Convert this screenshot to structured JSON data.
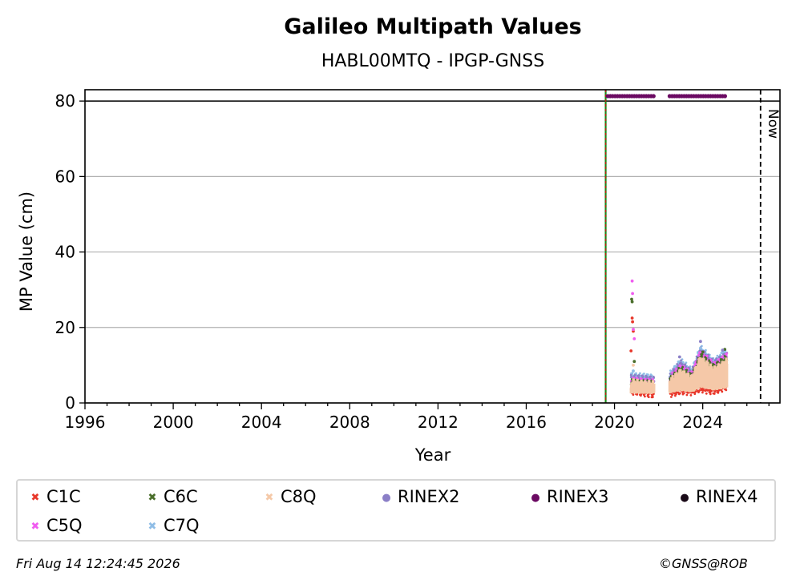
{
  "chart_data": {
    "type": "scatter",
    "title": "Galileo Multipath Values",
    "subtitle": "HABL00MTQ - IPGP-GNSS",
    "xlabel": "Year",
    "ylabel": "MP Value (cm)",
    "xlim": [
      1996,
      2027.5
    ],
    "ylim": [
      0,
      83
    ],
    "xticks": [
      1996,
      2000,
      2004,
      2008,
      2012,
      2016,
      2020,
      2024
    ],
    "yticks": [
      0,
      20,
      40,
      60,
      80
    ],
    "grid": "y",
    "reference_lines": {
      "horizontal": 80,
      "vertical_green": 2019.6,
      "now": 2026.62,
      "now_label": "Now"
    },
    "archive_markers": {
      "y": 81.3,
      "segments": [
        [
          2019.7,
          2021.8
        ],
        [
          2022.5,
          2025.1
        ]
      ]
    },
    "series": [
      {
        "name": "C1C",
        "color": "#e8382b",
        "marker": "x",
        "points": [
          [
            2020.75,
            13.8
          ],
          [
            2020.8,
            22.5
          ],
          [
            2020.82,
            21.5
          ],
          [
            2020.85,
            19
          ]
        ],
        "profile": [
          [
            2020.75,
            3.6
          ],
          [
            2021.8,
            2.6
          ],
          [
            2022.5,
            2.8
          ],
          [
            2023.0,
            3.6
          ],
          [
            2023.5,
            3.4
          ],
          [
            2023.9,
            4.2
          ],
          [
            2024.5,
            3.5
          ],
          [
            2025.1,
            4.8
          ]
        ]
      },
      {
        "name": "C5Q",
        "color": "#f05cf0",
        "marker": "x",
        "points": [
          [
            2020.8,
            32.3
          ],
          [
            2020.82,
            29
          ],
          [
            2020.85,
            19.5
          ],
          [
            2020.9,
            17
          ]
        ],
        "profile": [
          [
            2020.75,
            5.5
          ],
          [
            2021.8,
            5.0
          ],
          [
            2022.5,
            6.0
          ],
          [
            2023.0,
            9.0
          ],
          [
            2023.5,
            7.0
          ],
          [
            2023.9,
            13.0
          ],
          [
            2024.5,
            9.5
          ],
          [
            2025.1,
            12.0
          ]
        ]
      },
      {
        "name": "C6C",
        "color": "#4a6e2b",
        "marker": "x",
        "points": [
          [
            2020.78,
            27.5
          ],
          [
            2020.8,
            26.8
          ],
          [
            2020.9,
            11
          ],
          [
            2024.0,
            13.5
          ],
          [
            2025.0,
            14.2
          ]
        ],
        "profile": [
          [
            2020.75,
            5.0
          ],
          [
            2021.8,
            4.5
          ],
          [
            2022.5,
            5.5
          ],
          [
            2023.0,
            8.5
          ],
          [
            2023.5,
            6.5
          ],
          [
            2023.9,
            12.0
          ],
          [
            2024.5,
            9.0
          ],
          [
            2025.1,
            11.5
          ]
        ]
      },
      {
        "name": "C7Q",
        "color": "#8fbde6",
        "marker": "x",
        "points": [
          [
            2020.85,
            8.5
          ],
          [
            2023.9,
            14.5
          ],
          [
            2024.9,
            13.5
          ]
        ],
        "profile": [
          [
            2020.75,
            6.8
          ],
          [
            2021.8,
            6.2
          ],
          [
            2022.5,
            7.0
          ],
          [
            2023.0,
            10.5
          ],
          [
            2023.5,
            8.0
          ],
          [
            2023.9,
            14.0
          ],
          [
            2024.5,
            10.5
          ],
          [
            2025.1,
            13.0
          ]
        ]
      },
      {
        "name": "C8Q",
        "color": "#f5c9a8",
        "marker": "x",
        "points": [
          [
            2020.85,
            10
          ]
        ],
        "profile": [
          [
            2020.75,
            5.2
          ],
          [
            2021.8,
            4.6
          ],
          [
            2022.5,
            5.4
          ],
          [
            2023.0,
            8.0
          ],
          [
            2023.5,
            6.2
          ],
          [
            2023.9,
            11.5
          ],
          [
            2024.5,
            8.4
          ],
          [
            2025.1,
            10.8
          ]
        ]
      },
      {
        "name": "RINEX2",
        "color": "#8b7fc7",
        "marker": "dot",
        "points": [
          [
            2022.95,
            12.2
          ],
          [
            2023.9,
            16.3
          ],
          [
            2024.9,
            14.0
          ]
        ],
        "profile": [
          [
            2020.75,
            6.2
          ],
          [
            2021.8,
            5.8
          ],
          [
            2022.5,
            6.6
          ],
          [
            2023.0,
            10.0
          ],
          [
            2023.5,
            7.5
          ],
          [
            2023.9,
            13.5
          ],
          [
            2024.5,
            10.0
          ],
          [
            2025.1,
            12.5
          ]
        ]
      },
      {
        "name": "RINEX3",
        "color": "#6b0a62",
        "marker": "dot"
      },
      {
        "name": "RINEX4",
        "color": "#1a0a18",
        "marker": "dot"
      }
    ]
  },
  "footer": {
    "timestamp": "Fri Aug 14 12:24:45 2026",
    "credit": "©GNSS@ROB"
  }
}
